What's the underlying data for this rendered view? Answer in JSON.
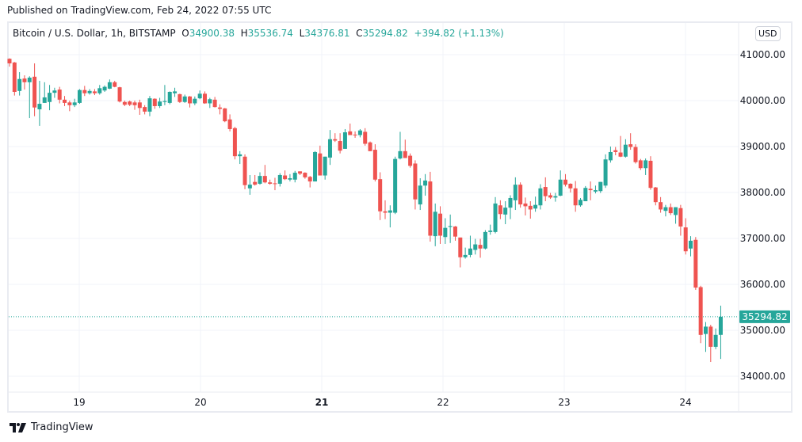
{
  "header": {
    "published": "Published on TradingView.com, Feb 24, 2022 07:55 UTC"
  },
  "legend": {
    "symbol": "Bitcoin / U.S. Dollar, 1h, BITSTAMP",
    "o_label": "O",
    "o": "34900.38",
    "h_label": "H",
    "h": "35536.74",
    "l_label": "L",
    "l": "34376.81",
    "c_label": "C",
    "c": "35294.82",
    "change": "+394.82 (+1.13%)"
  },
  "currency_button": "USD",
  "footer": {
    "brand": "TradingView",
    "logo_icon": "tradingview-logo-icon"
  },
  "colors": {
    "up": "#26a69a",
    "down": "#ef5350",
    "grid": "#f0f3fa",
    "last_price": "#26a69a"
  },
  "chart_data": {
    "type": "candlestick",
    "interval": "1h",
    "grid": true,
    "ylim": [
      33650,
      41450
    ],
    "y_ticks": [
      41000,
      40000,
      39000,
      38000,
      37000,
      36000,
      35000,
      34000
    ],
    "y_tick_labels": [
      "41000.00",
      "40000.00",
      "39000.00",
      "38000.00",
      "37000.00",
      "36000.00",
      "35000.00",
      "34000.00"
    ],
    "x_tick_labels": [
      "19",
      "20",
      "21",
      "22",
      "23",
      "24"
    ],
    "x_tick_bold": [
      "21"
    ],
    "last_price": 35294.82,
    "last_price_label": "35294.82",
    "ohlc": [
      [
        40910,
        40920,
        40740,
        40810
      ],
      [
        40830,
        40840,
        40110,
        40190
      ],
      [
        40210,
        40620,
        40110,
        40470
      ],
      [
        40480,
        40550,
        40240,
        40400
      ],
      [
        40400,
        40530,
        39620,
        40500
      ],
      [
        40520,
        40810,
        39660,
        39850
      ],
      [
        39810,
        40430,
        39450,
        39930
      ],
      [
        39950,
        40400,
        39950,
        40070
      ],
      [
        39970,
        40340,
        39790,
        40170
      ],
      [
        40170,
        40280,
        40060,
        40220
      ],
      [
        40240,
        40300,
        39940,
        40020
      ],
      [
        40020,
        40100,
        39880,
        39950
      ],
      [
        39960,
        40000,
        39770,
        39900
      ],
      [
        39900,
        40040,
        39860,
        39960
      ],
      [
        39950,
        40250,
        39930,
        40230
      ],
      [
        40230,
        40320,
        40100,
        40160
      ],
      [
        40160,
        40250,
        40130,
        40210
      ],
      [
        40200,
        40250,
        40120,
        40160
      ],
      [
        40160,
        40340,
        40130,
        40270
      ],
      [
        40220,
        40330,
        40190,
        40300
      ],
      [
        40260,
        40460,
        40250,
        40400
      ],
      [
        40400,
        40430,
        40290,
        40300
      ],
      [
        40290,
        40300,
        39960,
        39980
      ],
      [
        39970,
        40000,
        39880,
        39910
      ],
      [
        39980,
        40000,
        39880,
        39910
      ],
      [
        39960,
        40000,
        39800,
        39900
      ],
      [
        39960,
        40020,
        39690,
        39840
      ],
      [
        39860,
        39900,
        39700,
        39760
      ],
      [
        39760,
        40100,
        39660,
        40050
      ],
      [
        40040,
        40050,
        39820,
        39880
      ],
      [
        39880,
        40060,
        39840,
        39980
      ],
      [
        39970,
        40340,
        39900,
        39990
      ],
      [
        39950,
        40200,
        39920,
        40190
      ],
      [
        40160,
        40280,
        40080,
        40200
      ],
      [
        40140,
        40150,
        39950,
        39970
      ],
      [
        39970,
        40130,
        39950,
        40090
      ],
      [
        40090,
        40100,
        39850,
        39940
      ],
      [
        39940,
        40090,
        39900,
        40040
      ],
      [
        40050,
        40220,
        40030,
        40150
      ],
      [
        40150,
        40200,
        39930,
        39940
      ],
      [
        39940,
        40060,
        39840,
        40030
      ],
      [
        40020,
        40080,
        39850,
        39860
      ],
      [
        39850,
        39920,
        39700,
        39820
      ],
      [
        39830,
        39840,
        39530,
        39550
      ],
      [
        39590,
        39700,
        39330,
        39380
      ],
      [
        39400,
        39430,
        38720,
        38790
      ],
      [
        38790,
        38900,
        38620,
        38830
      ],
      [
        38780,
        38830,
        38070,
        38160
      ],
      [
        38090,
        38380,
        37950,
        38170
      ],
      [
        38230,
        38380,
        38150,
        38170
      ],
      [
        38190,
        38440,
        38170,
        38360
      ],
      [
        38360,
        38600,
        38200,
        38220
      ],
      [
        38220,
        38280,
        38170,
        38190
      ],
      [
        38200,
        38320,
        38050,
        38190
      ],
      [
        38190,
        38420,
        38130,
        38380
      ],
      [
        38370,
        38480,
        38270,
        38290
      ],
      [
        38280,
        38400,
        38240,
        38310
      ],
      [
        38280,
        38470,
        38220,
        38430
      ],
      [
        38460,
        38460,
        38380,
        38410
      ],
      [
        38430,
        38440,
        38300,
        38330
      ],
      [
        38340,
        38360,
        38110,
        38240
      ],
      [
        38240,
        38900,
        38240,
        38880
      ],
      [
        38850,
        39020,
        38370,
        38370
      ],
      [
        38370,
        38780,
        38280,
        38780
      ],
      [
        38760,
        39360,
        38600,
        39160
      ],
      [
        39160,
        39290,
        39100,
        39130
      ],
      [
        39120,
        39290,
        38850,
        38910
      ],
      [
        38950,
        39380,
        38950,
        39310
      ],
      [
        39330,
        39500,
        39250,
        39250
      ],
      [
        39260,
        39330,
        39190,
        39250
      ],
      [
        39250,
        39380,
        39200,
        39350
      ],
      [
        39320,
        39400,
        39020,
        39060
      ],
      [
        39090,
        39110,
        38900,
        38900
      ],
      [
        38930,
        39050,
        38240,
        38280
      ],
      [
        38290,
        38440,
        37400,
        37590
      ],
      [
        37590,
        37830,
        37420,
        37560
      ],
      [
        37560,
        37720,
        37240,
        37610
      ],
      [
        37560,
        38780,
        37530,
        38730
      ],
      [
        38740,
        39320,
        38720,
        38900
      ],
      [
        38900,
        39150,
        38750,
        38750
      ],
      [
        38800,
        38850,
        38540,
        38580
      ],
      [
        38630,
        38700,
        37630,
        37850
      ],
      [
        37740,
        38310,
        37620,
        38150
      ],
      [
        38150,
        38400,
        37930,
        38260
      ],
      [
        38240,
        38450,
        36930,
        37060
      ],
      [
        37050,
        37760,
        36830,
        37580
      ],
      [
        37540,
        37700,
        36880,
        37060
      ],
      [
        37030,
        37440,
        36880,
        37230
      ],
      [
        37250,
        37520,
        36900,
        37270
      ],
      [
        37260,
        37270,
        36950,
        37040
      ],
      [
        37020,
        37020,
        36370,
        36590
      ],
      [
        36590,
        36800,
        36560,
        36640
      ],
      [
        36640,
        37060,
        36590,
        36780
      ],
      [
        36750,
        36990,
        36650,
        36870
      ],
      [
        36860,
        36990,
        36580,
        36780
      ],
      [
        36780,
        37180,
        36760,
        37140
      ],
      [
        37140,
        37300,
        37080,
        37170
      ],
      [
        37140,
        37900,
        37110,
        37760
      ],
      [
        37720,
        37830,
        37420,
        37530
      ],
      [
        37520,
        37810,
        37310,
        37670
      ],
      [
        37670,
        37940,
        37420,
        37880
      ],
      [
        37830,
        38330,
        37620,
        38170
      ],
      [
        38170,
        38220,
        37670,
        37740
      ],
      [
        37760,
        37890,
        37500,
        37700
      ],
      [
        37710,
        37810,
        37430,
        37630
      ],
      [
        37650,
        37910,
        37580,
        37730
      ],
      [
        37720,
        38180,
        37630,
        38090
      ],
      [
        38120,
        38330,
        37810,
        37920
      ],
      [
        37940,
        37990,
        37860,
        37890
      ],
      [
        37890,
        37990,
        37800,
        37920
      ],
      [
        37930,
        38480,
        37920,
        38280
      ],
      [
        38280,
        38400,
        38130,
        38170
      ],
      [
        38190,
        38200,
        38000,
        38090
      ],
      [
        38090,
        38250,
        37580,
        37720
      ],
      [
        37720,
        37880,
        37690,
        37840
      ],
      [
        37810,
        38140,
        37810,
        38100
      ],
      [
        38080,
        38240,
        37830,
        38050
      ],
      [
        38020,
        38150,
        37980,
        38050
      ],
      [
        38030,
        38230,
        37990,
        38230
      ],
      [
        38150,
        38830,
        38100,
        38720
      ],
      [
        38700,
        39000,
        38650,
        38880
      ],
      [
        38920,
        38990,
        38810,
        38880
      ],
      [
        38870,
        39230,
        38770,
        38780
      ],
      [
        38780,
        39160,
        38760,
        39040
      ],
      [
        39050,
        39290,
        38930,
        38990
      ],
      [
        38990,
        39050,
        38630,
        38660
      ],
      [
        38700,
        38730,
        38490,
        38530
      ],
      [
        38530,
        38740,
        38380,
        38700
      ],
      [
        38690,
        38790,
        38060,
        38100
      ],
      [
        38110,
        38120,
        37720,
        37790
      ],
      [
        37790,
        37900,
        37560,
        37630
      ],
      [
        37600,
        37730,
        37480,
        37680
      ],
      [
        37680,
        37760,
        37510,
        37550
      ],
      [
        37510,
        37680,
        37320,
        37680
      ],
      [
        37660,
        37730,
        37060,
        37260
      ],
      [
        37240,
        37440,
        36650,
        36720
      ],
      [
        36780,
        37050,
        36610,
        36950
      ],
      [
        36970,
        37030,
        35880,
        35930
      ],
      [
        35940,
        35970,
        34720,
        34900
      ],
      [
        34920,
        35180,
        34530,
        35080
      ],
      [
        35080,
        35120,
        34310,
        34640
      ],
      [
        34640,
        35040,
        34590,
        34900
      ],
      [
        34900.38,
        35536.74,
        34376.81,
        35294.82
      ]
    ]
  }
}
